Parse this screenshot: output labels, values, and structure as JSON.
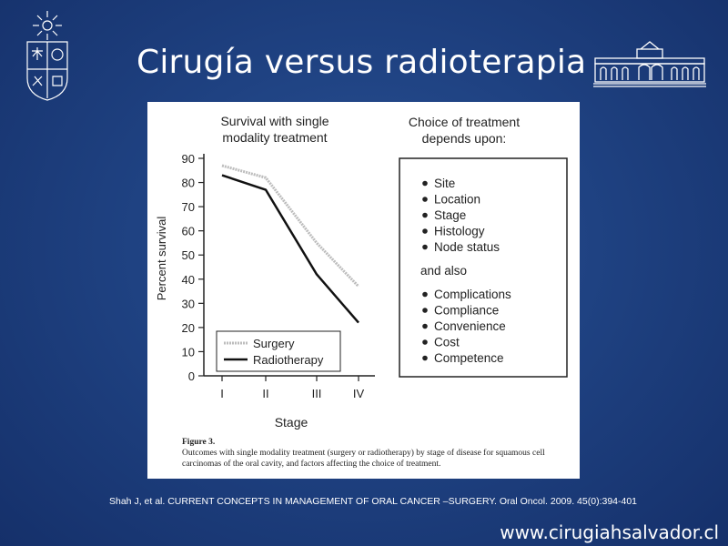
{
  "slide": {
    "title": "Cirugía versus radioterapia",
    "citation": "Shah J, et al. CURRENT CONCEPTS IN MANAGEMENT OF ORAL CANCER –SURGERY. Oral Oncol. 2009. 45(0):394-401",
    "website": "www.cirugiahsalvador.cl"
  },
  "logos": {
    "left": "university-crest-icon",
    "right": "hospital-building-icon"
  },
  "figure": {
    "label": "Figure 3.",
    "caption": "Outcomes with single modality treatment (surgery or radiotherapy) by stage of disease for squamous cell carcinomas of the oral cavity, and factors affecting the choice of treatment."
  },
  "chart_data": {
    "type": "line",
    "title_lines": [
      "Survival with single",
      "modality treatment"
    ],
    "xlabel": "Stage",
    "ylabel": "Percent survival",
    "categories": [
      "I",
      "II",
      "III",
      "IV"
    ],
    "yticks": [
      "0",
      "10",
      "20",
      "30",
      "40",
      "50",
      "60",
      "70",
      "80",
      "90"
    ],
    "ylim": [
      0,
      90
    ],
    "series": [
      {
        "name": "Surgery",
        "values": [
          87,
          82,
          55,
          37
        ],
        "color": "#bdbdbd"
      },
      {
        "name": "Radiotherapy",
        "values": [
          83,
          77,
          42,
          22
        ],
        "color": "#111111"
      }
    ],
    "legend_position": "bottom-left",
    "grid": false
  },
  "treatment_box": {
    "heading_lines": [
      "Choice of treatment",
      "depends upon:"
    ],
    "items": [
      "Site",
      "Location",
      "Stage",
      "Histology",
      "Node status"
    ],
    "also_label": "and also",
    "also_items": [
      "Complications",
      "Compliance",
      "Convenience",
      "Cost",
      "Competence"
    ]
  }
}
